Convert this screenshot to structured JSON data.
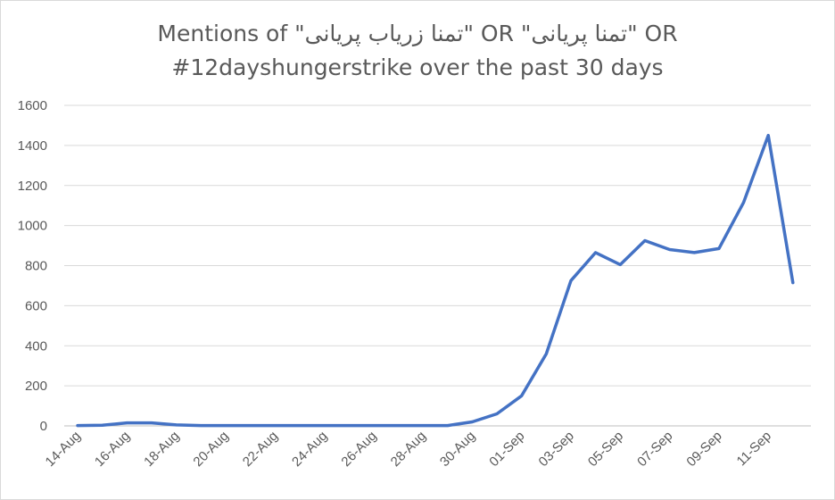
{
  "chart_data": {
    "type": "line",
    "title_line1": "Mentions of \"تمنا زریاب پریانی\" OR \"تمنا پریانی\" OR",
    "title_line2": "#12dayshungerstrike  over the past 30 days",
    "xlabel": "",
    "ylabel": "",
    "ylim": [
      0,
      1600
    ],
    "yticks": [
      0,
      200,
      400,
      600,
      800,
      1000,
      1200,
      1400,
      1600
    ],
    "grid": true,
    "x_tick_labels": [
      "14-Aug",
      "16-Aug",
      "18-Aug",
      "20-Aug",
      "22-Aug",
      "24-Aug",
      "26-Aug",
      "28-Aug",
      "30-Aug",
      "01-Sep",
      "03-Sep",
      "05-Sep",
      "07-Sep",
      "09-Sep",
      "11-Sep"
    ],
    "x": [
      "14-Aug",
      "15-Aug",
      "16-Aug",
      "17-Aug",
      "18-Aug",
      "19-Aug",
      "20-Aug",
      "21-Aug",
      "22-Aug",
      "23-Aug",
      "24-Aug",
      "25-Aug",
      "26-Aug",
      "27-Aug",
      "28-Aug",
      "29-Aug",
      "30-Aug",
      "31-Aug",
      "01-Sep",
      "02-Sep",
      "03-Sep",
      "04-Sep",
      "05-Sep",
      "06-Sep",
      "07-Sep",
      "08-Sep",
      "09-Sep",
      "10-Sep",
      "11-Sep",
      "12-Sep"
    ],
    "series": [
      {
        "values": [
          2,
          3,
          15,
          15,
          5,
          2,
          2,
          2,
          2,
          2,
          2,
          2,
          2,
          2,
          2,
          2,
          20,
          60,
          150,
          360,
          725,
          865,
          805,
          925,
          880,
          865,
          885,
          1115,
          1450,
          715
        ],
        "color": "#4472c4"
      }
    ]
  }
}
